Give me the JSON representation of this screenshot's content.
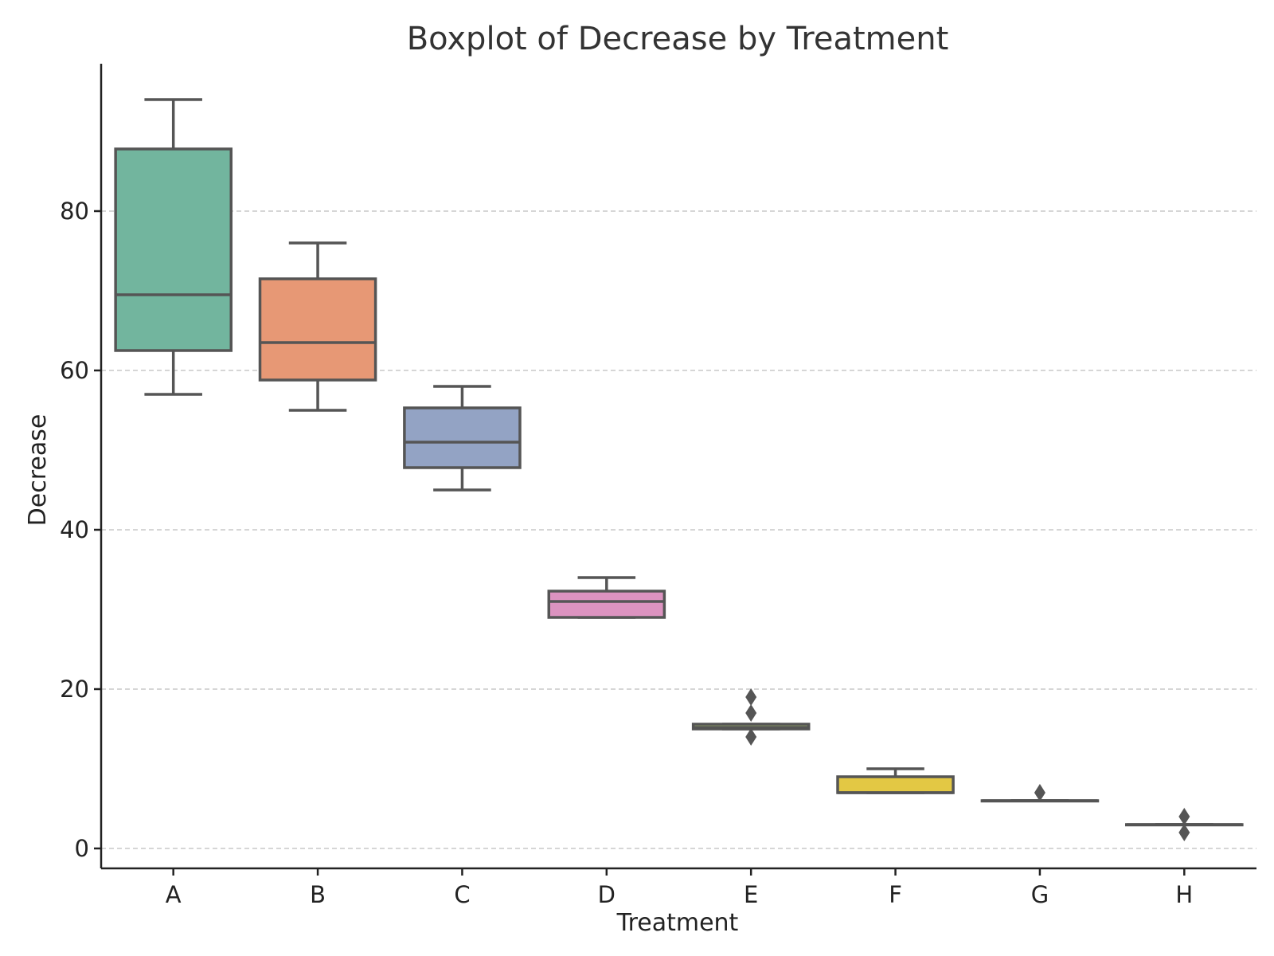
{
  "chart_data": {
    "type": "box",
    "title": "Boxplot of Decrease by Treatment",
    "xlabel": "Treatment",
    "ylabel": "Decrease",
    "ylim": [
      -2.5,
      98.5
    ],
    "yticks": [
      0,
      20,
      40,
      60,
      80
    ],
    "ytick_labels": [
      "0",
      "20",
      "40",
      "60",
      "80"
    ],
    "grid": "y dashed",
    "categories": [
      "A",
      "B",
      "C",
      "D",
      "E",
      "F",
      "G",
      "H"
    ],
    "boxes": [
      {
        "name": "A",
        "whislo": 57,
        "q1": 62.5,
        "med": 69.5,
        "q3": 87.8,
        "whishi": 94,
        "fliers": [],
        "color": "#72b59e"
      },
      {
        "name": "B",
        "whislo": 55,
        "q1": 58.8,
        "med": 63.5,
        "q3": 71.5,
        "whishi": 76,
        "fliers": [],
        "color": "#e79875"
      },
      {
        "name": "C",
        "whislo": 45,
        "q1": 47.8,
        "med": 51,
        "q3": 55.3,
        "whishi": 58,
        "fliers": [],
        "color": "#93a3c4"
      },
      {
        "name": "D",
        "whislo": 29,
        "q1": 29,
        "med": 31,
        "q3": 32.3,
        "whishi": 34,
        "fliers": [],
        "color": "#dc93c0"
      },
      {
        "name": "E",
        "whislo": 15,
        "q1": 15,
        "med": 15.2,
        "q3": 15.6,
        "whishi": 15.6,
        "fliers": [
          19,
          17,
          14
        ],
        "color": "#a8c66c"
      },
      {
        "name": "F",
        "whislo": 7,
        "q1": 7,
        "med": 7,
        "q3": 9,
        "whishi": 10,
        "fliers": [],
        "color": "#e3c844"
      },
      {
        "name": "G",
        "whislo": 6,
        "q1": 6,
        "med": 6,
        "q3": 6,
        "whishi": 6,
        "fliers": [
          7
        ],
        "color": "#d4bf9e"
      },
      {
        "name": "H",
        "whislo": 3,
        "q1": 3,
        "med": 3,
        "q3": 3,
        "whishi": 3,
        "fliers": [
          4,
          2
        ],
        "color": "#b3b3b3"
      }
    ]
  }
}
